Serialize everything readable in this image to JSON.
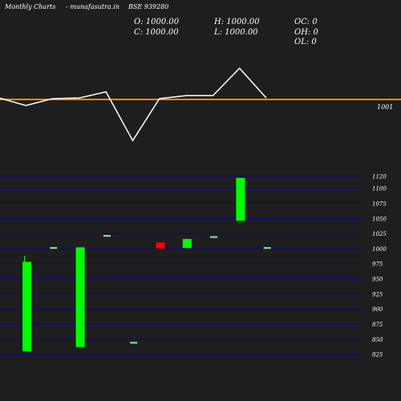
{
  "header": {
    "site_left": "Monthly Charts",
    "site_right": "- munafasutra.in",
    "symbol": "BSE 939280",
    "open": "O: 1000.00",
    "high": "H: 1000.00",
    "close": "C: 1000.00",
    "low": "L: 1000.00",
    "oc": "OC: 0",
    "oh": "OH: 0",
    "ol": "OL: 0"
  },
  "colors": {
    "background": "#1e1e1e",
    "up": "#00ff00",
    "down": "#ff0000",
    "flat": "#9be89b",
    "grid": "#0000aa",
    "line": "#ffffff",
    "reference": "#ff8c00"
  },
  "chart_data": [
    {
      "type": "line",
      "reference_value_label": "1001",
      "x": [
        1,
        2,
        3,
        4,
        5,
        6,
        7,
        8,
        9,
        10,
        11
      ],
      "values": [
        0.2,
        -0.8,
        0.1,
        0.2,
        1.0,
        -5.4,
        0.1,
        0.5,
        0.5,
        4.1,
        0.2
      ]
    },
    {
      "type": "candlestick",
      "ylim": [
        818,
        1130
      ],
      "y_ticks": [
        825,
        850,
        875,
        900,
        925,
        950,
        975,
        1000,
        1025,
        1050,
        1075,
        1100,
        1120
      ],
      "candles": [
        {
          "x": 1,
          "open": 830,
          "close": 978,
          "high": 988,
          "low": 830
        },
        {
          "x": 2,
          "open": 1001,
          "close": 1001,
          "high": 1001,
          "low": 1001
        },
        {
          "x": 3,
          "open": 837,
          "close": 1002,
          "high": 1002,
          "low": 837
        },
        {
          "x": 4,
          "open": 1021,
          "close": 1021,
          "high": 1021,
          "low": 1021
        },
        {
          "x": 5,
          "open": 844,
          "close": 844,
          "high": 844,
          "low": 844
        },
        {
          "x": 6,
          "open": 1010,
          "close": 1000,
          "high": 1010,
          "low": 1000
        },
        {
          "x": 7,
          "open": 1001,
          "close": 1016,
          "high": 1016,
          "low": 1001
        },
        {
          "x": 8,
          "open": 1019,
          "close": 1019,
          "high": 1019,
          "low": 1019
        },
        {
          "x": 9,
          "open": 1046,
          "close": 1117,
          "high": 1117,
          "low": 1046
        },
        {
          "x": 10,
          "open": 1001,
          "close": 1001,
          "high": 1001,
          "low": 1001
        }
      ]
    }
  ]
}
